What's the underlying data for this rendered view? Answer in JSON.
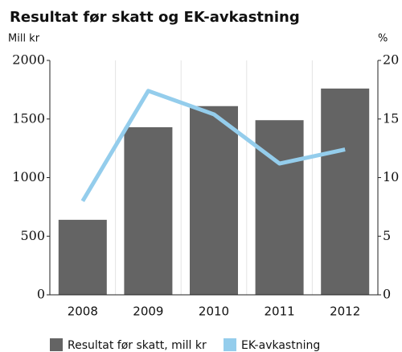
{
  "chart_data": {
    "type": "bar",
    "title": "Resultat før skatt og EK-avkastning",
    "y_label": "Mill kr",
    "y2_label": "%",
    "categories": [
      "2008",
      "2009",
      "2010",
      "2011",
      "2012"
    ],
    "series": [
      {
        "name": "Resultat før skatt, mill kr",
        "color": "#646464",
        "values": [
          640,
          1430,
          1610,
          1490,
          1760
        ]
      },
      {
        "name": "EK-avkastning",
        "color": "#94cdec",
        "values": [
          8.0,
          17.4,
          15.4,
          11.2,
          12.4
        ],
        "axis": "y2",
        "type": "line"
      }
    ],
    "ylim": [
      0,
      2000
    ],
    "yticks": [
      0,
      500,
      1000,
      1500,
      2000
    ],
    "y2lim": [
      0,
      20
    ],
    "y2ticks": [
      0,
      5,
      10,
      15,
      20
    ]
  }
}
